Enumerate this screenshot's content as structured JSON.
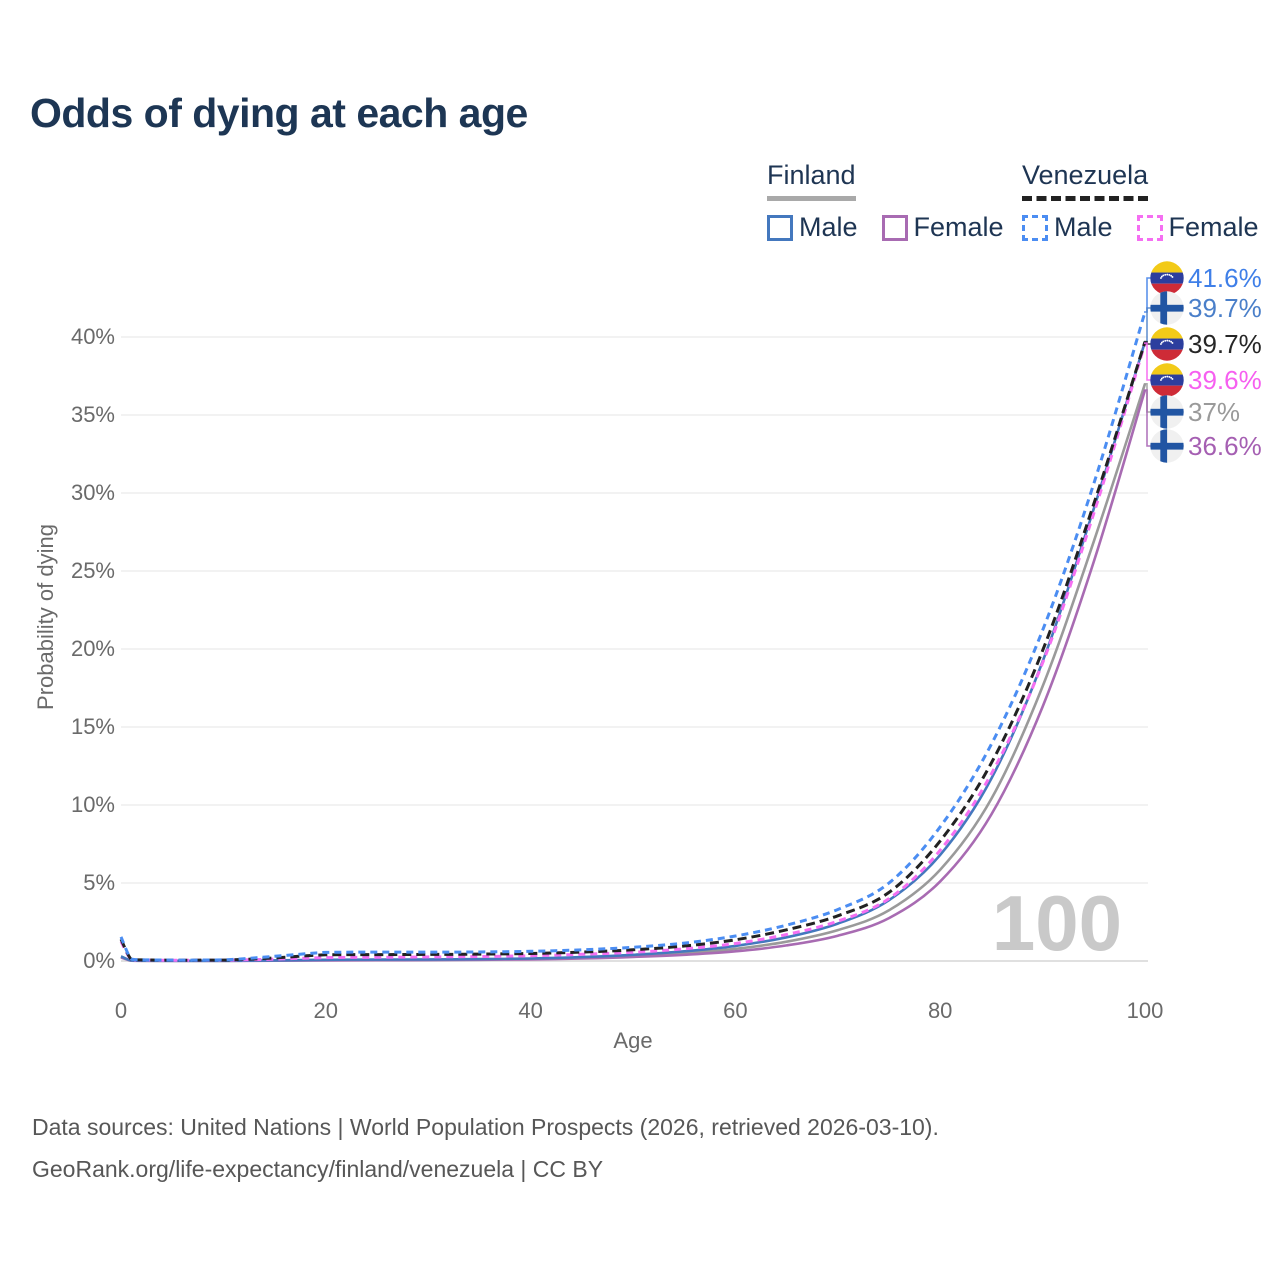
{
  "title": "Odds of dying at each age",
  "legend": {
    "finland": {
      "country": "Finland",
      "male": "Male",
      "female": "Female"
    },
    "venezuela": {
      "country": "Venezuela",
      "male": "Male",
      "female": "Female"
    }
  },
  "colors": {
    "finland_male": "#4478be",
    "finland_female": "#a86bb2",
    "finland_total": "#9a9a9a",
    "venezuela_male": "#4b8df2",
    "venezuela_female": "#f56ff2",
    "venezuela_total": "#222222",
    "title_text": "#1d3654",
    "axis_text": "#6a6a6a",
    "grid": "#ededed",
    "watermark": "#c9c9c9",
    "finland_flag_cross": "#2155a3",
    "venezuela_flag_yellow": "#f2ca18",
    "venezuela_flag_blue": "#2c3e9e",
    "venezuela_flag_red": "#ce2b37"
  },
  "chart_data": {
    "type": "line",
    "title": "Odds of dying at each age",
    "xlabel": "Age",
    "ylabel": "Probability of dying",
    "xlim": [
      0,
      100
    ],
    "ylim": [
      0,
      43.5
    ],
    "grid": "horizontal-only",
    "age_counter": "100",
    "x_ticks": [
      {
        "value": 0,
        "label": "0"
      },
      {
        "value": 20,
        "label": "20"
      },
      {
        "value": 40,
        "label": "40"
      },
      {
        "value": 60,
        "label": "60"
      },
      {
        "value": 80,
        "label": "80"
      },
      {
        "value": 100,
        "label": "100"
      }
    ],
    "y_ticks": [
      {
        "value": 0,
        "label": "0%"
      },
      {
        "value": 5,
        "label": "5%"
      },
      {
        "value": 10,
        "label": "10%"
      },
      {
        "value": 15,
        "label": "15%"
      },
      {
        "value": 20,
        "label": "20%"
      },
      {
        "value": 25,
        "label": "25%"
      },
      {
        "value": 30,
        "label": "30%"
      },
      {
        "value": 35,
        "label": "35%"
      },
      {
        "value": 40,
        "label": "40%"
      }
    ],
    "ages": [
      0,
      1,
      2,
      5,
      10,
      15,
      20,
      25,
      30,
      35,
      40,
      45,
      50,
      55,
      60,
      65,
      70,
      75,
      80,
      85,
      90,
      95,
      100
    ],
    "series": [
      {
        "id": "finland-total",
        "name": "Finland",
        "dashed": false,
        "color": "#9a9a9a",
        "values": [
          0.26,
          0.025,
          0.015,
          0.01,
          0.01,
          0.03,
          0.06,
          0.07,
          0.08,
          0.1,
          0.13,
          0.2,
          0.32,
          0.5,
          0.78,
          1.24,
          1.98,
          3.25,
          5.85,
          10.4,
          17.6,
          26.9,
          37.0
        ]
      },
      {
        "id": "finland-female",
        "name": "Finland Female",
        "dashed": false,
        "color": "#a86bb2",
        "values": [
          0.22,
          0.02,
          0.01,
          0.01,
          0.01,
          0.02,
          0.04,
          0.05,
          0.06,
          0.08,
          0.1,
          0.16,
          0.26,
          0.4,
          0.62,
          1.0,
          1.62,
          2.75,
          5.1,
          9.4,
          16.3,
          25.6,
          36.6
        ]
      },
      {
        "id": "finland-male",
        "name": "Finland Male",
        "dashed": false,
        "color": "#4478be",
        "values": [
          0.3,
          0.03,
          0.02,
          0.01,
          0.01,
          0.04,
          0.08,
          0.09,
          0.1,
          0.12,
          0.16,
          0.25,
          0.4,
          0.62,
          0.97,
          1.52,
          2.4,
          3.9,
          6.8,
          11.7,
          19.2,
          29.0,
          39.7
        ]
      },
      {
        "id": "venezuela-female",
        "name": "Venezuela Female",
        "dashed": true,
        "color": "#f56ff2",
        "values": [
          1.25,
          0.09,
          0.06,
          0.05,
          0.05,
          0.12,
          0.22,
          0.24,
          0.26,
          0.29,
          0.34,
          0.43,
          0.56,
          0.78,
          1.12,
          1.7,
          2.55,
          4.0,
          7.1,
          12.0,
          19.1,
          28.7,
          39.6
        ]
      },
      {
        "id": "venezuela-total",
        "name": "Venezuela",
        "dashed": true,
        "color": "#222222",
        "values": [
          1.4,
          0.1,
          0.07,
          0.05,
          0.06,
          0.2,
          0.4,
          0.41,
          0.42,
          0.44,
          0.48,
          0.57,
          0.72,
          0.96,
          1.36,
          2.0,
          2.9,
          4.4,
          7.7,
          12.7,
          19.9,
          29.3,
          39.7
        ]
      },
      {
        "id": "venezuela-male",
        "name": "Venezuela Male",
        "dashed": true,
        "color": "#4b8df2",
        "values": [
          1.55,
          0.12,
          0.08,
          0.06,
          0.07,
          0.3,
          0.55,
          0.57,
          0.57,
          0.58,
          0.62,
          0.72,
          0.88,
          1.15,
          1.6,
          2.3,
          3.3,
          5.0,
          8.6,
          13.9,
          21.2,
          30.6,
          41.6
        ]
      }
    ]
  },
  "end_labels": [
    {
      "series": "venezuela-male",
      "flag": "venezuela",
      "text": "41.6%",
      "color": "#3f7fe8"
    },
    {
      "series": "finland-male",
      "flag": "finland",
      "text": "39.7%",
      "color": "#4a7fc9"
    },
    {
      "series": "venezuela-total",
      "flag": "venezuela",
      "text": "39.7%",
      "color": "#262626"
    },
    {
      "series": "venezuela-female",
      "flag": "venezuela",
      "text": "39.6%",
      "color": "#f65ff0"
    },
    {
      "series": "finland-total",
      "flag": "finland",
      "text": "37%",
      "color": "#9a9a9a"
    },
    {
      "series": "finland-female",
      "flag": "finland",
      "text": "36.6%",
      "color": "#a55fb2"
    }
  ],
  "footer": {
    "line1": "Data sources: United Nations | World Population Prospects (2026, retrieved 2026-03-10).",
    "line2": "GeoRank.org/life-expectancy/finland/venezuela | CC BY"
  }
}
